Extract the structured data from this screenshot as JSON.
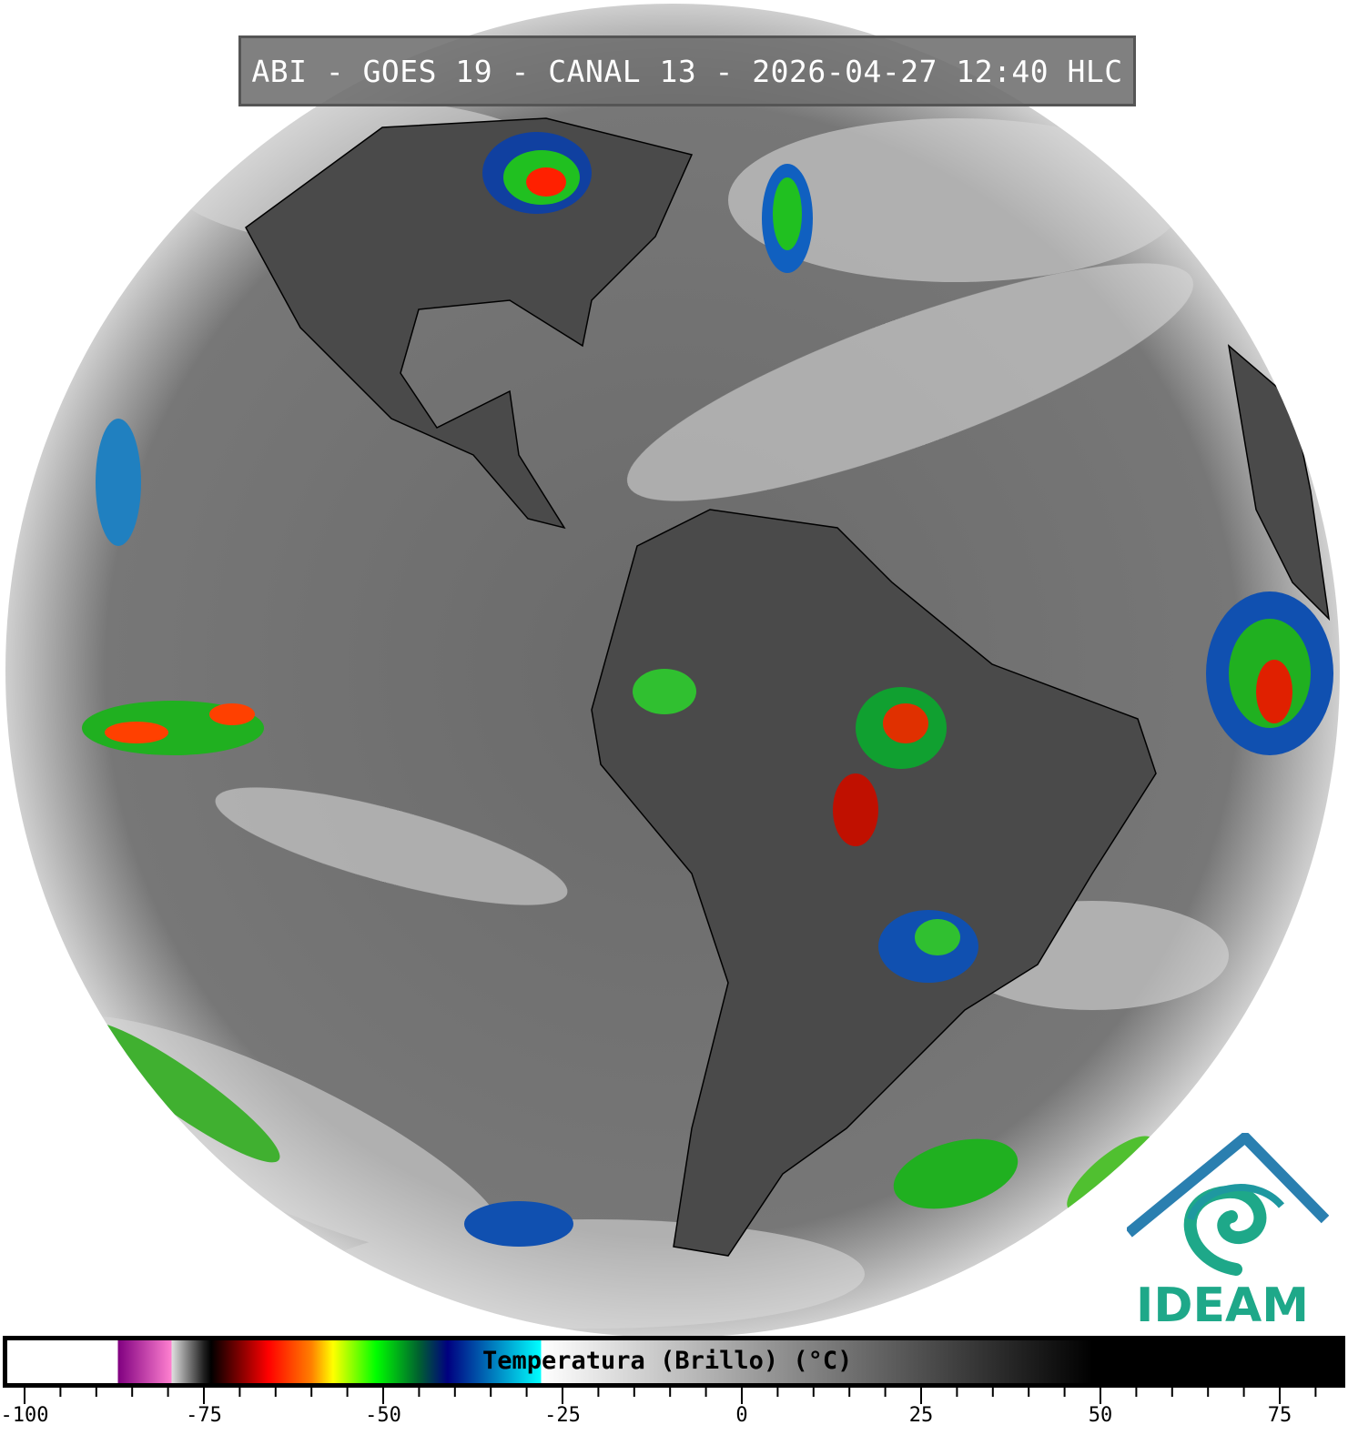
{
  "title": "ABI - GOES 19 - CANAL 13 - 2026-04-27 12:40 HLC",
  "logo": {
    "text": "IDEAM",
    "color": "#1ea889"
  },
  "colorbar": {
    "label": "Temperatura (Brillo) (°C)",
    "range": [
      -100,
      80
    ],
    "tick_step": 5,
    "tick_labels": [
      "-100",
      "-75",
      "-50",
      "-25",
      "0",
      "25",
      "50",
      "75"
    ],
    "tick_label_values": [
      -100,
      -75,
      -50,
      -25,
      0,
      25,
      50,
      75
    ],
    "stops": [
      {
        "t": -100,
        "color": "#ffffff"
      },
      {
        "t": -87,
        "color": "#ffffff"
      },
      {
        "t": -87,
        "color": "#800080"
      },
      {
        "t": -79.5,
        "color": "#ff80d0"
      },
      {
        "t": -79.5,
        "color": "#e0e0e0"
      },
      {
        "t": -75,
        "color": "#202020"
      },
      {
        "t": -74,
        "color": "#000000"
      },
      {
        "t": -66,
        "color": "#ff0000"
      },
      {
        "t": -60,
        "color": "#ff8000"
      },
      {
        "t": -57,
        "color": "#ffff00"
      },
      {
        "t": -51,
        "color": "#00ff00"
      },
      {
        "t": -45,
        "color": "#006030"
      },
      {
        "t": -41,
        "color": "#000080"
      },
      {
        "t": -28,
        "color": "#00ffff"
      },
      {
        "t": -28,
        "color": "#ffffff"
      },
      {
        "t": 49,
        "color": "#000000"
      },
      {
        "t": 80,
        "color": "#000000"
      }
    ]
  }
}
